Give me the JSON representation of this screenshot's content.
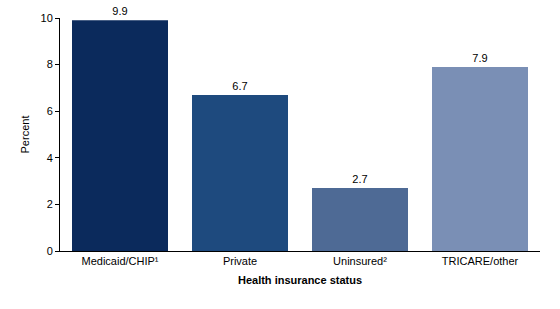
{
  "chart_data": {
    "type": "bar",
    "x_label": "Health insurance status",
    "y_label": "Percent",
    "categories": [
      "Medicaid/CHIP¹",
      "Private",
      "Uninsured²",
      "TRICARE/other"
    ],
    "values": [
      9.9,
      6.7,
      2.7,
      7.9
    ],
    "colors": [
      "#0b2a5c",
      "#1e4a7e",
      "#4e6a95",
      "#7a8fb5"
    ],
    "ylim": [
      0,
      10
    ],
    "yticks": [
      0,
      2,
      4,
      6,
      8,
      10
    ],
    "grid": false,
    "data_labels": true
  }
}
